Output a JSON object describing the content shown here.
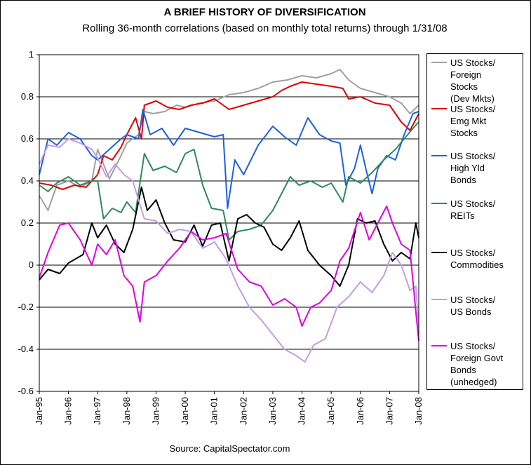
{
  "chart_data": {
    "type": "line",
    "title": "A BRIEF HISTORY OF DIVERSIFICATION",
    "subtitle": "Rolling 36-month correlations (based on monthly total returns) through 1/31/08",
    "source": "Source: CapitalSpectator.com",
    "ylim": [
      -0.6,
      1.0
    ],
    "yticks": [
      1,
      0.8,
      0.6,
      0.4,
      0.2,
      0,
      -0.2,
      -0.4,
      -0.6
    ],
    "ytick_labels": [
      "1",
      "0.8",
      "0.6",
      "0.4",
      "0.2",
      "0",
      "-0.2",
      "-0.4",
      "-0.6"
    ],
    "xlim": [
      1995.0,
      2008.0
    ],
    "x_ticks": [
      1995,
      1996,
      1997,
      1998,
      1999,
      2000,
      2001,
      2002,
      2003,
      2004,
      2005,
      2006,
      2007,
      2008
    ],
    "x_tick_labels": [
      "Jan-95",
      "Jan-96",
      "Jan-97",
      "Jan-98",
      "Jan-99",
      "Jan-00",
      "Jan-01",
      "Jan-02",
      "Jan-03",
      "Jan-04",
      "Jan-05",
      "Jan-06",
      "Jan-07",
      "Jan-08"
    ],
    "grid": "horizontal",
    "legend_position": "right",
    "series": [
      {
        "name": "US Stocks/\nForeign\nStocks\n(Dev Mkts)",
        "color": "#a0a0a0",
        "points": [
          [
            1995.0,
            0.33
          ],
          [
            1995.3,
            0.26
          ],
          [
            1995.6,
            0.38
          ],
          [
            1996.0,
            0.4
          ],
          [
            1996.4,
            0.37
          ],
          [
            1996.8,
            0.4
          ],
          [
            1997.0,
            0.55
          ],
          [
            1997.4,
            0.41
          ],
          [
            1997.8,
            0.52
          ],
          [
            1998.0,
            0.58
          ],
          [
            1998.4,
            0.62
          ],
          [
            1998.6,
            0.73
          ],
          [
            1998.9,
            0.72
          ],
          [
            1999.3,
            0.73
          ],
          [
            1999.7,
            0.76
          ],
          [
            2000.0,
            0.75
          ],
          [
            2000.5,
            0.77
          ],
          [
            2001.0,
            0.78
          ],
          [
            2001.5,
            0.81
          ],
          [
            2002.0,
            0.82
          ],
          [
            2002.5,
            0.84
          ],
          [
            2003.0,
            0.87
          ],
          [
            2003.5,
            0.88
          ],
          [
            2004.0,
            0.9
          ],
          [
            2004.5,
            0.89
          ],
          [
            2005.0,
            0.91
          ],
          [
            2005.3,
            0.93
          ],
          [
            2005.6,
            0.88
          ],
          [
            2006.0,
            0.84
          ],
          [
            2006.5,
            0.82
          ],
          [
            2007.0,
            0.8
          ],
          [
            2007.4,
            0.77
          ],
          [
            2007.7,
            0.72
          ],
          [
            2008.0,
            0.76
          ]
        ]
      },
      {
        "name": "US Stocks/\nEmg Mkt\nStocks",
        "color": "#e00000",
        "points": [
          [
            1995.0,
            0.39
          ],
          [
            1995.4,
            0.38
          ],
          [
            1995.8,
            0.36
          ],
          [
            1996.2,
            0.38
          ],
          [
            1996.6,
            0.37
          ],
          [
            1997.0,
            0.43
          ],
          [
            1997.2,
            0.52
          ],
          [
            1997.5,
            0.5
          ],
          [
            1997.8,
            0.56
          ],
          [
            1998.0,
            0.62
          ],
          [
            1998.3,
            0.7
          ],
          [
            1998.5,
            0.6
          ],
          [
            1998.6,
            0.76
          ],
          [
            1999.0,
            0.78
          ],
          [
            1999.4,
            0.75
          ],
          [
            1999.8,
            0.74
          ],
          [
            2000.2,
            0.76
          ],
          [
            2000.6,
            0.77
          ],
          [
            2001.0,
            0.79
          ],
          [
            2001.5,
            0.74
          ],
          [
            2002.0,
            0.76
          ],
          [
            2002.5,
            0.78
          ],
          [
            2003.0,
            0.8
          ],
          [
            2003.3,
            0.83
          ],
          [
            2003.6,
            0.85
          ],
          [
            2004.0,
            0.87
          ],
          [
            2004.5,
            0.86
          ],
          [
            2005.0,
            0.85
          ],
          [
            2005.4,
            0.84
          ],
          [
            2005.6,
            0.79
          ],
          [
            2006.0,
            0.8
          ],
          [
            2006.5,
            0.77
          ],
          [
            2007.0,
            0.76
          ],
          [
            2007.4,
            0.68
          ],
          [
            2007.7,
            0.64
          ],
          [
            2008.0,
            0.72
          ]
        ]
      },
      {
        "name": "US Stocks/\nHigh Yld\nBonds",
        "color": "#2060e0",
        "points": [
          [
            1995.0,
            0.43
          ],
          [
            1995.3,
            0.6
          ],
          [
            1995.6,
            0.57
          ],
          [
            1996.0,
            0.63
          ],
          [
            1996.4,
            0.6
          ],
          [
            1996.8,
            0.52
          ],
          [
            1997.0,
            0.5
          ],
          [
            1997.4,
            0.55
          ],
          [
            1997.8,
            0.6
          ],
          [
            1998.0,
            0.62
          ],
          [
            1998.4,
            0.6
          ],
          [
            1998.55,
            0.74
          ],
          [
            1998.8,
            0.62
          ],
          [
            1999.2,
            0.65
          ],
          [
            1999.6,
            0.57
          ],
          [
            2000.0,
            0.65
          ],
          [
            2000.5,
            0.63
          ],
          [
            2001.0,
            0.61
          ],
          [
            2001.3,
            0.62
          ],
          [
            2001.45,
            0.27
          ],
          [
            2001.7,
            0.5
          ],
          [
            2002.0,
            0.43
          ],
          [
            2002.5,
            0.57
          ],
          [
            2003.0,
            0.66
          ],
          [
            2003.4,
            0.61
          ],
          [
            2003.8,
            0.57
          ],
          [
            2004.2,
            0.7
          ],
          [
            2004.6,
            0.62
          ],
          [
            2005.0,
            0.59
          ],
          [
            2005.3,
            0.58
          ],
          [
            2005.5,
            0.38
          ],
          [
            2005.8,
            0.46
          ],
          [
            2006.0,
            0.57
          ],
          [
            2006.2,
            0.45
          ],
          [
            2006.4,
            0.34
          ],
          [
            2006.6,
            0.46
          ],
          [
            2006.9,
            0.52
          ],
          [
            2007.2,
            0.5
          ],
          [
            2007.5,
            0.62
          ],
          [
            2007.8,
            0.72
          ],
          [
            2008.0,
            0.73
          ]
        ]
      },
      {
        "name": "US Stocks/\nREITs",
        "color": "#2e8b57",
        "points": [
          [
            1995.0,
            0.38
          ],
          [
            1995.3,
            0.35
          ],
          [
            1995.6,
            0.39
          ],
          [
            1996.0,
            0.42
          ],
          [
            1996.4,
            0.38
          ],
          [
            1996.8,
            0.4
          ],
          [
            1997.0,
            0.4
          ],
          [
            1997.2,
            0.22
          ],
          [
            1997.5,
            0.27
          ],
          [
            1997.8,
            0.25
          ],
          [
            1998.0,
            0.3
          ],
          [
            1998.3,
            0.25
          ],
          [
            1998.6,
            0.53
          ],
          [
            1998.9,
            0.45
          ],
          [
            1999.3,
            0.47
          ],
          [
            1999.7,
            0.44
          ],
          [
            2000.0,
            0.53
          ],
          [
            2000.3,
            0.55
          ],
          [
            2000.6,
            0.38
          ],
          [
            2000.9,
            0.27
          ],
          [
            2001.3,
            0.26
          ],
          [
            2001.5,
            0.12
          ],
          [
            2001.8,
            0.16
          ],
          [
            2002.2,
            0.17
          ],
          [
            2002.6,
            0.19
          ],
          [
            2003.0,
            0.26
          ],
          [
            2003.3,
            0.34
          ],
          [
            2003.6,
            0.42
          ],
          [
            2003.9,
            0.38
          ],
          [
            2004.3,
            0.4
          ],
          [
            2004.7,
            0.37
          ],
          [
            2005.0,
            0.39
          ],
          [
            2005.4,
            0.3
          ],
          [
            2005.6,
            0.42
          ],
          [
            2006.0,
            0.39
          ],
          [
            2006.4,
            0.44
          ],
          [
            2006.8,
            0.5
          ],
          [
            2007.2,
            0.55
          ],
          [
            2007.5,
            0.6
          ],
          [
            2007.8,
            0.65
          ],
          [
            2008.0,
            0.68
          ]
        ]
      },
      {
        "name": "US Stocks/\nCommodities",
        "color": "#000000",
        "points": [
          [
            1995.0,
            -0.07
          ],
          [
            1995.3,
            -0.02
          ],
          [
            1995.7,
            -0.04
          ],
          [
            1996.0,
            0.01
          ],
          [
            1996.5,
            0.05
          ],
          [
            1996.8,
            0.2
          ],
          [
            1997.0,
            0.13
          ],
          [
            1997.3,
            0.19
          ],
          [
            1997.6,
            0.1
          ],
          [
            1997.9,
            0.06
          ],
          [
            1998.2,
            0.17
          ],
          [
            1998.5,
            0.37
          ],
          [
            1998.7,
            0.26
          ],
          [
            1999.0,
            0.31
          ],
          [
            1999.3,
            0.2
          ],
          [
            1999.6,
            0.12
          ],
          [
            2000.0,
            0.11
          ],
          [
            2000.3,
            0.19
          ],
          [
            2000.6,
            0.09
          ],
          [
            2000.9,
            0.19
          ],
          [
            2001.2,
            0.2
          ],
          [
            2001.5,
            0.02
          ],
          [
            2001.8,
            0.22
          ],
          [
            2002.1,
            0.24
          ],
          [
            2002.4,
            0.2
          ],
          [
            2002.7,
            0.18
          ],
          [
            2003.0,
            0.1
          ],
          [
            2003.3,
            0.07
          ],
          [
            2003.6,
            0.13
          ],
          [
            2003.9,
            0.21
          ],
          [
            2004.2,
            0.07
          ],
          [
            2004.6,
            0.0
          ],
          [
            2005.0,
            -0.05
          ],
          [
            2005.3,
            -0.1
          ],
          [
            2005.6,
            0.0
          ],
          [
            2005.9,
            0.22
          ],
          [
            2006.2,
            0.2
          ],
          [
            2006.5,
            0.21
          ],
          [
            2006.8,
            0.1
          ],
          [
            2007.1,
            0.02
          ],
          [
            2007.4,
            0.06
          ],
          [
            2007.7,
            0.03
          ],
          [
            2007.9,
            0.2
          ],
          [
            2008.0,
            0.13
          ]
        ]
      },
      {
        "name": "US Stocks/\nUS Bonds",
        "color": "#c09ee8",
        "points": [
          [
            1995.0,
            0.48
          ],
          [
            1995.3,
            0.57
          ],
          [
            1995.7,
            0.56
          ],
          [
            1996.0,
            0.6
          ],
          [
            1996.4,
            0.58
          ],
          [
            1996.8,
            0.55
          ],
          [
            1997.0,
            0.51
          ],
          [
            1997.3,
            0.42
          ],
          [
            1997.6,
            0.48
          ],
          [
            1997.9,
            0.43
          ],
          [
            1998.2,
            0.4
          ],
          [
            1998.6,
            0.22
          ],
          [
            1999.0,
            0.21
          ],
          [
            1999.4,
            0.15
          ],
          [
            1999.8,
            0.17
          ],
          [
            2000.2,
            0.16
          ],
          [
            2000.6,
            0.08
          ],
          [
            2001.0,
            0.11
          ],
          [
            2001.4,
            0.03
          ],
          [
            2001.8,
            -0.1
          ],
          [
            2002.2,
            -0.2
          ],
          [
            2002.6,
            -0.26
          ],
          [
            2003.0,
            -0.33
          ],
          [
            2003.4,
            -0.4
          ],
          [
            2003.8,
            -0.43
          ],
          [
            2004.1,
            -0.46
          ],
          [
            2004.4,
            -0.38
          ],
          [
            2004.8,
            -0.35
          ],
          [
            2005.2,
            -0.2
          ],
          [
            2005.6,
            -0.15
          ],
          [
            2006.0,
            -0.08
          ],
          [
            2006.4,
            -0.13
          ],
          [
            2006.8,
            -0.05
          ],
          [
            2007.1,
            0.06
          ],
          [
            2007.4,
            0.0
          ],
          [
            2007.7,
            -0.12
          ],
          [
            2007.9,
            -0.1
          ],
          [
            2008.0,
            -0.3
          ]
        ]
      },
      {
        "name": "US Stocks/\nForeign Govt\nBonds\n(unhedged)",
        "color": "#e000e0",
        "points": [
          [
            1995.0,
            -0.06
          ],
          [
            1995.3,
            0.06
          ],
          [
            1995.7,
            0.19
          ],
          [
            1996.0,
            0.2
          ],
          [
            1996.4,
            0.12
          ],
          [
            1996.8,
            0.0
          ],
          [
            1997.0,
            0.1
          ],
          [
            1997.3,
            0.05
          ],
          [
            1997.6,
            0.12
          ],
          [
            1997.9,
            -0.05
          ],
          [
            1998.2,
            -0.1
          ],
          [
            1998.45,
            -0.27
          ],
          [
            1998.6,
            -0.08
          ],
          [
            1999.0,
            -0.05
          ],
          [
            1999.4,
            0.02
          ],
          [
            1999.8,
            0.08
          ],
          [
            2000.2,
            0.16
          ],
          [
            2000.6,
            0.12
          ],
          [
            2001.0,
            0.13
          ],
          [
            2001.4,
            0.15
          ],
          [
            2001.8,
            -0.02
          ],
          [
            2002.2,
            -0.08
          ],
          [
            2002.6,
            -0.1
          ],
          [
            2003.0,
            -0.19
          ],
          [
            2003.4,
            -0.16
          ],
          [
            2003.8,
            -0.2
          ],
          [
            2004.0,
            -0.29
          ],
          [
            2004.3,
            -0.2
          ],
          [
            2004.6,
            -0.18
          ],
          [
            2005.0,
            -0.12
          ],
          [
            2005.3,
            0.02
          ],
          [
            2005.6,
            0.08
          ],
          [
            2006.0,
            0.25
          ],
          [
            2006.3,
            0.12
          ],
          [
            2006.6,
            0.2
          ],
          [
            2006.9,
            0.28
          ],
          [
            2007.1,
            0.2
          ],
          [
            2007.4,
            0.1
          ],
          [
            2007.7,
            0.07
          ],
          [
            2007.9,
            -0.22
          ],
          [
            2008.0,
            -0.36
          ]
        ]
      }
    ]
  }
}
